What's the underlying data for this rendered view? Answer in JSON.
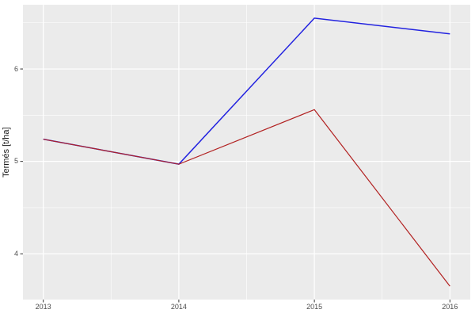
{
  "chart_data": {
    "type": "line",
    "x": [
      2013,
      2014,
      2015,
      2016
    ],
    "series": [
      {
        "name": "blue-series",
        "color": "#2222E0",
        "values": [
          5.24,
          4.97,
          6.55,
          6.38
        ]
      },
      {
        "name": "red-series",
        "color": "#B22222",
        "values": [
          5.24,
          4.97,
          5.56,
          3.65
        ]
      }
    ],
    "title": "",
    "xlabel": "",
    "ylabel": "Termés [t/ha]",
    "xlim": [
      2012.85,
      2016.15
    ],
    "ylim": [
      3.505,
      6.695
    ],
    "x_ticks": [
      2013,
      2014,
      2015,
      2016
    ],
    "y_ticks": [
      4,
      5,
      6
    ],
    "x_minor_ticks": [
      2013.5,
      2014.5,
      2015.5
    ],
    "y_minor_ticks": [
      3.5,
      4.5,
      5.5,
      6.5
    ],
    "grid": true,
    "legend": "none",
    "colors": {
      "panel_background": "#EBEBEB",
      "grid_line": "#FFFFFF",
      "tick_mark": "#333333",
      "tick_label": "#4D4D4D",
      "axis_title": "#1A1A1A",
      "figure_background": "#FFFFFF"
    }
  }
}
